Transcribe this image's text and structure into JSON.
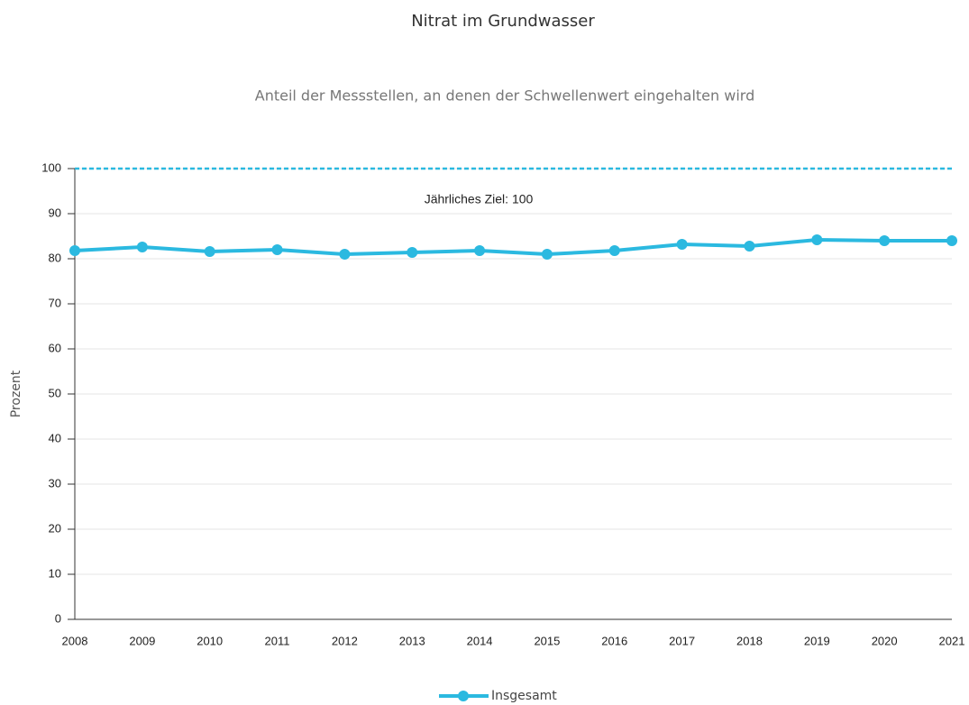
{
  "chart_data": {
    "type": "line",
    "title": "Nitrat im Grundwasser",
    "subtitle": "Anteil der Messstellen, an denen der Schwellenwert eingehalten wird",
    "y_label": "Prozent",
    "categories": [
      "2008",
      "2009",
      "2010",
      "2011",
      "2012",
      "2013",
      "2014",
      "2015",
      "2016",
      "2017",
      "2018",
      "2019",
      "2020",
      "2021"
    ],
    "series": [
      {
        "name": "Insgesamt",
        "color": "#2bb9e0",
        "values": [
          81.8,
          82.6,
          81.6,
          82.0,
          81.0,
          81.4,
          81.8,
          81.0,
          81.8,
          83.2,
          82.8,
          84.2,
          84.0,
          84.0
        ]
      }
    ],
    "target": {
      "label": "Jährliches Ziel: 100",
      "value": 100,
      "color": "#2bb9e0"
    },
    "ylim": [
      0,
      100
    ],
    "yticks": [
      0,
      10,
      20,
      30,
      40,
      50,
      60,
      70,
      80,
      90,
      100
    ],
    "grid": true,
    "legend": "bottom"
  }
}
